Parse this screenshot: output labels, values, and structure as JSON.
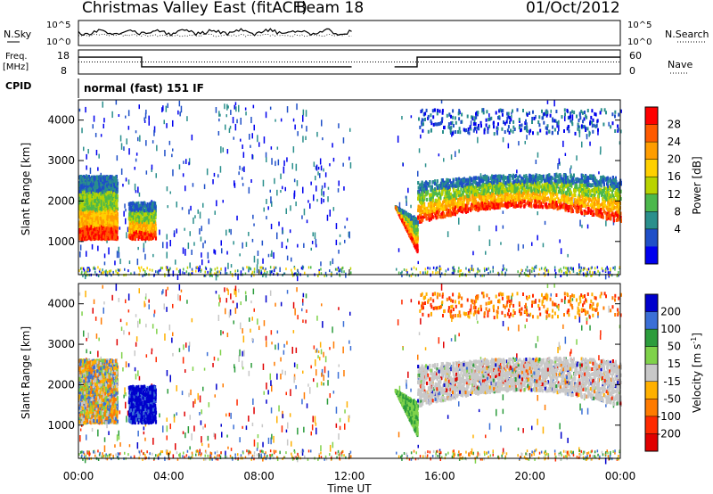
{
  "header": {
    "title": "Christmas Valley East (fitACF)",
    "beam": "Beam 18",
    "date": "01/Oct/2012"
  },
  "noise_panel": {
    "left_label": "N.Sky",
    "left_ticks": [
      "10^5",
      "10^0"
    ],
    "right_ticks": [
      "10^5",
      "10^0"
    ],
    "right_label": "N.Search"
  },
  "freq_panel": {
    "left_label_line1": "Freq.",
    "left_label_line2": "[MHz]",
    "left_ticks": [
      "18",
      "8"
    ],
    "right_ticks": [
      "60",
      "0"
    ],
    "right_label": "Nave"
  },
  "cpid": {
    "label": "CPID",
    "value": "normal (fast) 151 IF"
  },
  "chart_data": [
    {
      "type": "heatmap",
      "parameter": "Power",
      "ylabel": "Slant Range [km]",
      "xlabel": "",
      "ylim": [
        180,
        4500
      ],
      "y_ticks": [
        "1000",
        "2000",
        "3000",
        "4000"
      ],
      "colorbar": {
        "label": "Power [dB]",
        "ticks": [
          "28",
          "24",
          "20",
          "16",
          "12",
          "8",
          "4"
        ],
        "colors": [
          "#ff0000",
          "#ff5a00",
          "#ff9d00",
          "#ffd000",
          "#b9d300",
          "#4cb84c",
          "#2a8f8c",
          "#1f4fc8",
          "#0000ee"
        ]
      },
      "features": [
        {
          "hours": [
            0.0,
            1.7
          ],
          "range_km": [
            1100,
            2650
          ],
          "peak_db": 30
        },
        {
          "hours": [
            2.2,
            3.4
          ],
          "range_km": [
            1100,
            2000
          ],
          "peak_db": 28
        },
        {
          "hours": [
            14.0,
            15.0
          ],
          "range_km": [
            750,
            1900
          ],
          "peak_db": 30
        },
        {
          "hours": [
            15.0,
            24.0
          ],
          "range_km": [
            1500,
            2700
          ],
          "peak_db": 30
        }
      ]
    },
    {
      "type": "heatmap",
      "parameter": "Velocity",
      "ylabel": "Slant Range [km]",
      "xlabel": "Time UT",
      "ylim": [
        180,
        4500
      ],
      "x_range_hours": [
        0,
        24
      ],
      "x_ticks": [
        "00:00",
        "04:00",
        "08:00",
        "12:00",
        "16:00",
        "20:00",
        "00:00"
      ],
      "y_ticks": [
        "1000",
        "2000",
        "3000",
        "4000"
      ],
      "colorbar": {
        "label": "Velocity [m s^-1]",
        "ticks": [
          "200",
          "100",
          "50",
          "15",
          "-15",
          "-50",
          "-100",
          "-200"
        ],
        "colors": [
          "#0000cc",
          "#3b6fd6",
          "#2c9c3c",
          "#7fd24a",
          "#c8c8c8",
          "#ffb000",
          "#ff7b00",
          "#ff2a00",
          "#e00000"
        ]
      },
      "features": [
        {
          "hours": [
            0.0,
            1.7
          ],
          "range_km": [
            1100,
            2650
          ],
          "velocity": "mixed, mostly +15 to -100"
        },
        {
          "hours": [
            2.2,
            3.4
          ],
          "range_km": [
            900,
            2000
          ],
          "velocity": "+200"
        },
        {
          "hours": [
            14.0,
            15.0
          ],
          "range_km": [
            750,
            1900
          ],
          "velocity": "+50"
        },
        {
          "hours": [
            15.0,
            24.0
          ],
          "range_km": [
            1500,
            2700
          ],
          "velocity": "-15 to 15"
        }
      ]
    }
  ]
}
